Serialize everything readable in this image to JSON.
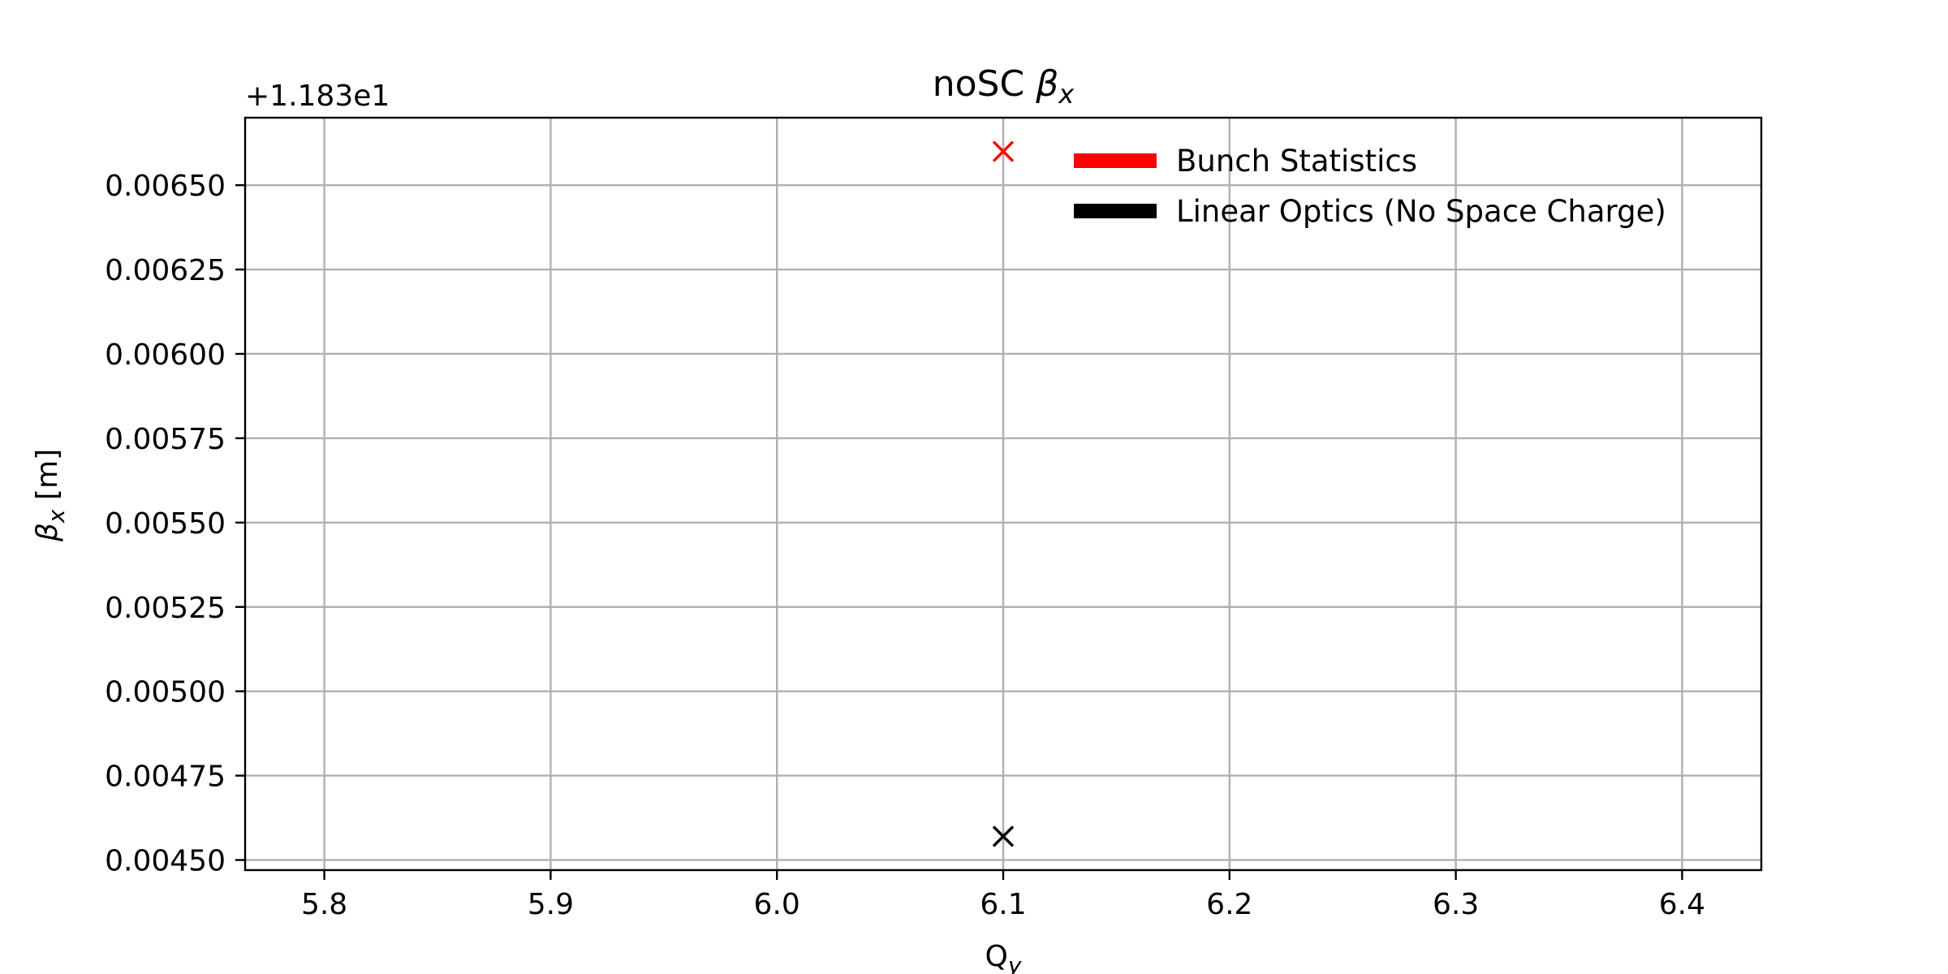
{
  "chart_data": {
    "type": "scatter",
    "title_main": "noSC ",
    "title_sym": "β",
    "title_sub": "x",
    "xlabel_main": "Q",
    "xlabel_sub": "y",
    "ylabel_sym": "β",
    "ylabel_sub": "x",
    "ylabel_unit": " [m]",
    "y_offset_text": "+1.183e1",
    "xlim": [
      5.765,
      6.435
    ],
    "ylim": [
      0.00447,
      0.0067
    ],
    "x_ticks": [
      5.8,
      5.9,
      6.0,
      6.1,
      6.2,
      6.3,
      6.4
    ],
    "x_tick_labels": [
      "5.8",
      "5.9",
      "6.0",
      "6.1",
      "6.2",
      "6.3",
      "6.4"
    ],
    "y_ticks": [
      0.0045,
      0.00475,
      0.005,
      0.00525,
      0.0055,
      0.00575,
      0.006,
      0.00625,
      0.0065
    ],
    "y_tick_labels": [
      "0.00450",
      "0.00475",
      "0.00500",
      "0.00525",
      "0.00550",
      "0.00575",
      "0.00600",
      "0.00625",
      "0.00650"
    ],
    "grid": true,
    "legend_position": "top-right",
    "series": [
      {
        "name": "Bunch Statistics",
        "color": "#ff0000",
        "marker": "x",
        "x": [
          6.1
        ],
        "y": [
          0.0066
        ]
      },
      {
        "name": "Linear Optics (No Space Charge)",
        "color": "#000000",
        "marker": "x",
        "x": [
          6.1
        ],
        "y": [
          0.00457
        ]
      }
    ]
  }
}
